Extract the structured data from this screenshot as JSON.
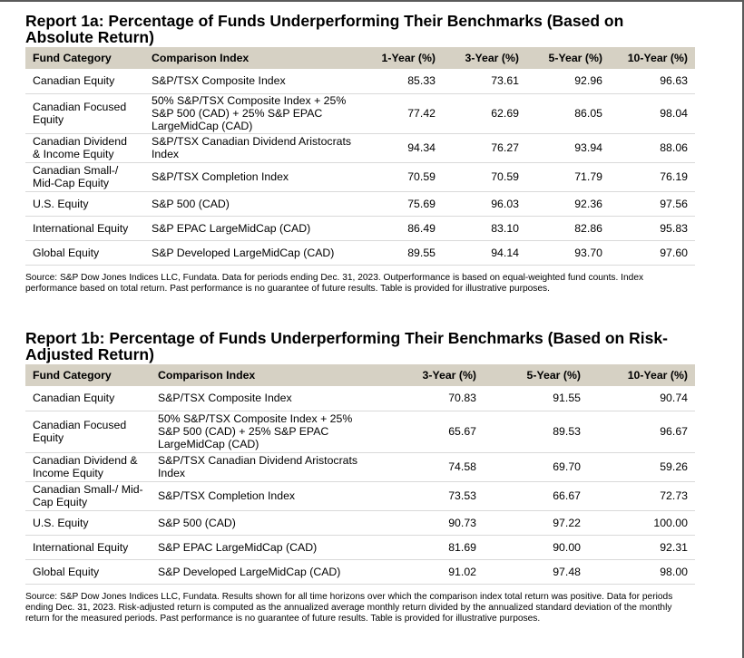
{
  "report_1a": {
    "title": "Report 1a: Percentage of Funds Underperforming Their Benchmarks (Based on Absolute Return)",
    "headers": [
      "Fund Category",
      "Comparison Index",
      "1-Year (%)",
      "3-Year (%)",
      "5-Year (%)",
      "10-Year (%)"
    ],
    "rows": [
      [
        "Canadian Equity",
        "S&P/TSX Composite Index",
        "85.33",
        "73.61",
        "92.96",
        "96.63"
      ],
      [
        "Canadian Focused Equity",
        "50% S&P/TSX Composite Index + 25% S&P 500 (CAD) + 25% S&P EPAC LargeMidCap (CAD)",
        "77.42",
        "62.69",
        "86.05",
        "98.04"
      ],
      [
        "Canadian Dividend & Income Equity",
        "S&P/TSX Canadian Dividend Aristocrats Index",
        "94.34",
        "76.27",
        "93.94",
        "88.06"
      ],
      [
        "Canadian Small-/ Mid-Cap Equity",
        "S&P/TSX Completion Index",
        "70.59",
        "70.59",
        "71.79",
        "76.19"
      ],
      [
        "U.S. Equity",
        "S&P 500 (CAD)",
        "75.69",
        "96.03",
        "92.36",
        "97.56"
      ],
      [
        "International Equity",
        "S&P EPAC LargeMidCap (CAD)",
        "86.49",
        "83.10",
        "82.86",
        "95.83"
      ],
      [
        "Global Equity",
        "S&P Developed LargeMidCap (CAD)",
        "89.55",
        "94.14",
        "93.70",
        "97.60"
      ]
    ],
    "source": "Source: S&P Dow Jones Indices LLC, Fundata.  Data for periods ending Dec. 31, 2023.  Outperformance is based on equal-weighted fund counts.  Index performance based on total return.  Past performance is no guarantee of future results.  Table is provided for illustrative purposes."
  },
  "report_1b": {
    "title": "Report 1b: Percentage of Funds Underperforming Their Benchmarks (Based on Risk-Adjusted Return)",
    "headers": [
      "Fund Category",
      "Comparison Index",
      "3-Year (%)",
      "5-Year (%)",
      "10-Year (%)"
    ],
    "rows": [
      [
        "Canadian Equity",
        "S&P/TSX Composite Index",
        "70.83",
        "91.55",
        "90.74"
      ],
      [
        "Canadian Focused Equity",
        "50% S&P/TSX Composite Index + 25% S&P 500 (CAD) + 25% S&P EPAC LargeMidCap (CAD)",
        "65.67",
        "89.53",
        "96.67"
      ],
      [
        "Canadian Dividend & Income Equity",
        "S&P/TSX Canadian Dividend Aristocrats Index",
        "74.58",
        "69.70",
        "59.26"
      ],
      [
        "Canadian Small-/ Mid-Cap Equity",
        "S&P/TSX Completion Index",
        "73.53",
        "66.67",
        "72.73"
      ],
      [
        "U.S. Equity",
        "S&P 500 (CAD)",
        "90.73",
        "97.22",
        "100.00"
      ],
      [
        "International Equity",
        "S&P EPAC LargeMidCap (CAD)",
        "81.69",
        "90.00",
        "92.31"
      ],
      [
        "Global Equity",
        "S&P Developed LargeMidCap (CAD)",
        "91.02",
        "97.48",
        "98.00"
      ]
    ],
    "source": "Source: S&P Dow Jones Indices LLC, Fundata.  Results shown for all time horizons over which the comparison index total return was positive.  Data for periods ending Dec. 31, 2023.  Risk-adjusted return is computed as the annualized average monthly return divided by the annualized standard deviation of the monthly return for the measured periods.  Past performance is no guarantee of future results.  Table is provided for illustrative purposes."
  }
}
